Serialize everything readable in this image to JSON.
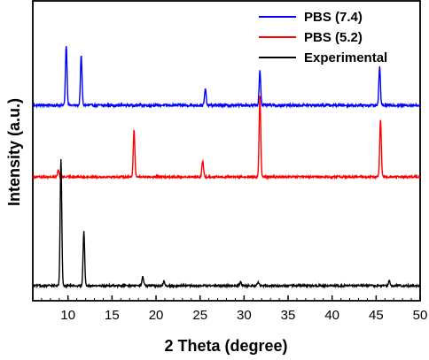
{
  "chart_data": {
    "type": "line",
    "xlabel": "2 Theta (degree)",
    "ylabel": "Intensity (a.u.)",
    "xlim": [
      6,
      50
    ],
    "x_ticks": [
      10,
      15,
      20,
      25,
      30,
      35,
      40,
      45,
      50
    ],
    "y_ticks_shown": false,
    "grid": false,
    "legend_position": "top-right",
    "series": [
      {
        "name": "PBS (7.4)",
        "color": "#0000ff",
        "stack_level": "top",
        "baseline": 0,
        "noise_amplitude": 0.045,
        "peaks": [
          {
            "x": 9.8,
            "height": 1.05
          },
          {
            "x": 11.5,
            "height": 0.86
          },
          {
            "x": 25.6,
            "height": 0.28
          },
          {
            "x": 31.8,
            "height": 0.6
          },
          {
            "x": 45.4,
            "height": 0.66
          }
        ]
      },
      {
        "name": "PBS (5.2)",
        "color": "#ff0000",
        "stack_level": "middle",
        "baseline": 0,
        "noise_amplitude": 0.035,
        "peaks": [
          {
            "x": 8.9,
            "height": 0.12
          },
          {
            "x": 17.5,
            "height": 0.82
          },
          {
            "x": 25.3,
            "height": 0.28
          },
          {
            "x": 31.8,
            "height": 1.4
          },
          {
            "x": 45.5,
            "height": 1.0
          }
        ]
      },
      {
        "name": "Experimental",
        "color": "#000000",
        "stack_level": "bottom",
        "baseline": 0,
        "noise_amplitude": 0.035,
        "peaks": [
          {
            "x": 9.2,
            "height": 2.2
          },
          {
            "x": 11.8,
            "height": 0.95
          },
          {
            "x": 18.5,
            "height": 0.16
          },
          {
            "x": 20.9,
            "height": 0.08
          },
          {
            "x": 29.6,
            "height": 0.07
          },
          {
            "x": 31.6,
            "height": 0.06
          },
          {
            "x": 46.5,
            "height": 0.09
          }
        ]
      }
    ]
  }
}
